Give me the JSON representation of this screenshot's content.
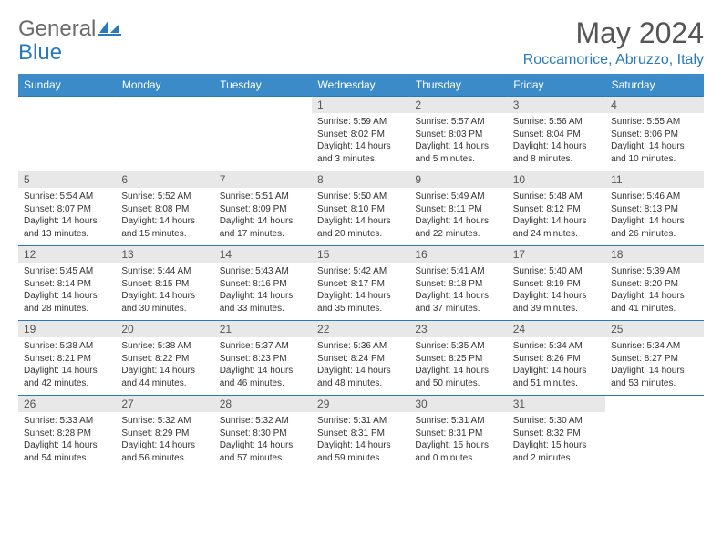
{
  "brand": {
    "name1": "General",
    "name2": "Blue"
  },
  "title": "May 2024",
  "location": "Roccamorice, Abruzzo, Italy",
  "weekdays": [
    "Sunday",
    "Monday",
    "Tuesday",
    "Wednesday",
    "Thursday",
    "Friday",
    "Saturday"
  ],
  "colors": {
    "header_bg": "#3b8bc9",
    "accent": "#2a7ab9",
    "daynum_bg": "#e8e8e8",
    "text": "#333333",
    "brand_grey": "#6b6b6b"
  },
  "weeks": [
    [
      null,
      null,
      null,
      {
        "n": "1",
        "sunrise": "5:59 AM",
        "sunset": "8:02 PM",
        "d1": "Daylight: 14 hours",
        "d2": "and 3 minutes."
      },
      {
        "n": "2",
        "sunrise": "5:57 AM",
        "sunset": "8:03 PM",
        "d1": "Daylight: 14 hours",
        "d2": "and 5 minutes."
      },
      {
        "n": "3",
        "sunrise": "5:56 AM",
        "sunset": "8:04 PM",
        "d1": "Daylight: 14 hours",
        "d2": "and 8 minutes."
      },
      {
        "n": "4",
        "sunrise": "5:55 AM",
        "sunset": "8:06 PM",
        "d1": "Daylight: 14 hours",
        "d2": "and 10 minutes."
      }
    ],
    [
      {
        "n": "5",
        "sunrise": "5:54 AM",
        "sunset": "8:07 PM",
        "d1": "Daylight: 14 hours",
        "d2": "and 13 minutes."
      },
      {
        "n": "6",
        "sunrise": "5:52 AM",
        "sunset": "8:08 PM",
        "d1": "Daylight: 14 hours",
        "d2": "and 15 minutes."
      },
      {
        "n": "7",
        "sunrise": "5:51 AM",
        "sunset": "8:09 PM",
        "d1": "Daylight: 14 hours",
        "d2": "and 17 minutes."
      },
      {
        "n": "8",
        "sunrise": "5:50 AM",
        "sunset": "8:10 PM",
        "d1": "Daylight: 14 hours",
        "d2": "and 20 minutes."
      },
      {
        "n": "9",
        "sunrise": "5:49 AM",
        "sunset": "8:11 PM",
        "d1": "Daylight: 14 hours",
        "d2": "and 22 minutes."
      },
      {
        "n": "10",
        "sunrise": "5:48 AM",
        "sunset": "8:12 PM",
        "d1": "Daylight: 14 hours",
        "d2": "and 24 minutes."
      },
      {
        "n": "11",
        "sunrise": "5:46 AM",
        "sunset": "8:13 PM",
        "d1": "Daylight: 14 hours",
        "d2": "and 26 minutes."
      }
    ],
    [
      {
        "n": "12",
        "sunrise": "5:45 AM",
        "sunset": "8:14 PM",
        "d1": "Daylight: 14 hours",
        "d2": "and 28 minutes."
      },
      {
        "n": "13",
        "sunrise": "5:44 AM",
        "sunset": "8:15 PM",
        "d1": "Daylight: 14 hours",
        "d2": "and 30 minutes."
      },
      {
        "n": "14",
        "sunrise": "5:43 AM",
        "sunset": "8:16 PM",
        "d1": "Daylight: 14 hours",
        "d2": "and 33 minutes."
      },
      {
        "n": "15",
        "sunrise": "5:42 AM",
        "sunset": "8:17 PM",
        "d1": "Daylight: 14 hours",
        "d2": "and 35 minutes."
      },
      {
        "n": "16",
        "sunrise": "5:41 AM",
        "sunset": "8:18 PM",
        "d1": "Daylight: 14 hours",
        "d2": "and 37 minutes."
      },
      {
        "n": "17",
        "sunrise": "5:40 AM",
        "sunset": "8:19 PM",
        "d1": "Daylight: 14 hours",
        "d2": "and 39 minutes."
      },
      {
        "n": "18",
        "sunrise": "5:39 AM",
        "sunset": "8:20 PM",
        "d1": "Daylight: 14 hours",
        "d2": "and 41 minutes."
      }
    ],
    [
      {
        "n": "19",
        "sunrise": "5:38 AM",
        "sunset": "8:21 PM",
        "d1": "Daylight: 14 hours",
        "d2": "and 42 minutes."
      },
      {
        "n": "20",
        "sunrise": "5:38 AM",
        "sunset": "8:22 PM",
        "d1": "Daylight: 14 hours",
        "d2": "and 44 minutes."
      },
      {
        "n": "21",
        "sunrise": "5:37 AM",
        "sunset": "8:23 PM",
        "d1": "Daylight: 14 hours",
        "d2": "and 46 minutes."
      },
      {
        "n": "22",
        "sunrise": "5:36 AM",
        "sunset": "8:24 PM",
        "d1": "Daylight: 14 hours",
        "d2": "and 48 minutes."
      },
      {
        "n": "23",
        "sunrise": "5:35 AM",
        "sunset": "8:25 PM",
        "d1": "Daylight: 14 hours",
        "d2": "and 50 minutes."
      },
      {
        "n": "24",
        "sunrise": "5:34 AM",
        "sunset": "8:26 PM",
        "d1": "Daylight: 14 hours",
        "d2": "and 51 minutes."
      },
      {
        "n": "25",
        "sunrise": "5:34 AM",
        "sunset": "8:27 PM",
        "d1": "Daylight: 14 hours",
        "d2": "and 53 minutes."
      }
    ],
    [
      {
        "n": "26",
        "sunrise": "5:33 AM",
        "sunset": "8:28 PM",
        "d1": "Daylight: 14 hours",
        "d2": "and 54 minutes."
      },
      {
        "n": "27",
        "sunrise": "5:32 AM",
        "sunset": "8:29 PM",
        "d1": "Daylight: 14 hours",
        "d2": "and 56 minutes."
      },
      {
        "n": "28",
        "sunrise": "5:32 AM",
        "sunset": "8:30 PM",
        "d1": "Daylight: 14 hours",
        "d2": "and 57 minutes."
      },
      {
        "n": "29",
        "sunrise": "5:31 AM",
        "sunset": "8:31 PM",
        "d1": "Daylight: 14 hours",
        "d2": "and 59 minutes."
      },
      {
        "n": "30",
        "sunrise": "5:31 AM",
        "sunset": "8:31 PM",
        "d1": "Daylight: 15 hours",
        "d2": "and 0 minutes."
      },
      {
        "n": "31",
        "sunrise": "5:30 AM",
        "sunset": "8:32 PM",
        "d1": "Daylight: 15 hours",
        "d2": "and 2 minutes."
      },
      null
    ]
  ]
}
